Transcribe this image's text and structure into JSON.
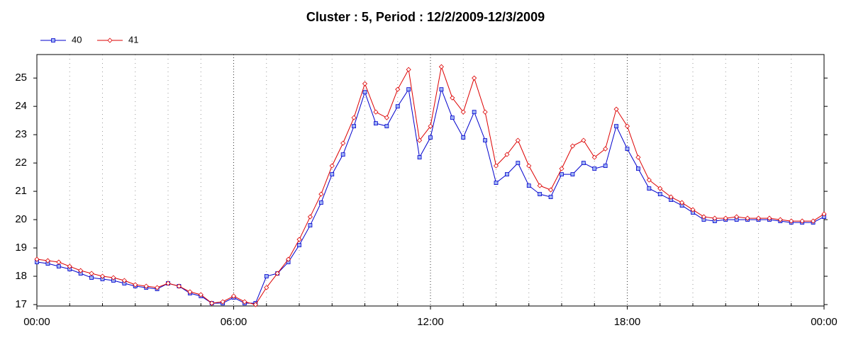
{
  "chart_data": {
    "type": "line",
    "title": "Cluster : 5, Period : 12/2/2009-12/3/2009",
    "x": [
      0,
      20,
      40,
      60,
      80,
      100,
      120,
      140,
      160,
      180,
      200,
      220,
      240,
      260,
      280,
      300,
      320,
      340,
      360,
      380,
      400,
      420,
      440,
      460,
      480,
      500,
      520,
      540,
      560,
      580,
      600,
      620,
      640,
      660,
      680,
      700,
      720,
      740,
      760,
      780,
      800,
      820,
      840,
      860,
      880,
      900,
      920,
      940,
      960,
      980,
      1000,
      1020,
      1040,
      1060,
      1080,
      1100,
      1120,
      1140,
      1160,
      1180,
      1200,
      1220,
      1240,
      1260,
      1280,
      1300,
      1320,
      1340,
      1360,
      1380,
      1400,
      1420,
      1440
    ],
    "series": [
      {
        "name": "40",
        "color": "#0000cc",
        "marker": "square",
        "values": [
          18.5,
          18.45,
          18.35,
          18.25,
          18.1,
          17.95,
          17.9,
          17.85,
          17.75,
          17.65,
          17.6,
          17.55,
          17.75,
          17.65,
          17.4,
          17.3,
          17.05,
          17.05,
          17.25,
          17.05,
          17.05,
          18.0,
          18.1,
          18.5,
          19.1,
          19.8,
          20.6,
          21.6,
          22.3,
          23.3,
          24.5,
          23.4,
          23.3,
          24.0,
          24.6,
          22.2,
          22.9,
          24.6,
          23.6,
          22.9,
          23.8,
          22.8,
          21.3,
          21.6,
          22.0,
          21.2,
          20.9,
          20.8,
          21.6,
          21.6,
          22.0,
          21.8,
          21.9,
          23.3,
          22.5,
          21.8,
          21.1,
          20.9,
          20.7,
          20.5,
          20.25,
          20.0,
          19.95,
          20.0,
          20.0,
          20.0,
          20.0,
          20.0,
          19.95,
          19.9,
          19.9,
          19.9,
          20.1
        ]
      },
      {
        "name": "41",
        "color": "#dd0000",
        "marker": "diamond",
        "values": [
          18.6,
          18.55,
          18.5,
          18.35,
          18.2,
          18.1,
          18.0,
          17.95,
          17.85,
          17.7,
          17.65,
          17.6,
          17.75,
          17.65,
          17.45,
          17.35,
          17.05,
          17.1,
          17.3,
          17.1,
          17.0,
          17.6,
          18.1,
          18.6,
          19.3,
          20.1,
          20.9,
          21.9,
          22.7,
          23.6,
          24.8,
          23.8,
          23.6,
          24.6,
          25.3,
          22.8,
          23.3,
          25.4,
          24.3,
          23.8,
          25.0,
          23.8,
          21.9,
          22.3,
          22.8,
          21.9,
          21.2,
          21.05,
          21.8,
          22.6,
          22.8,
          22.2,
          22.5,
          23.9,
          23.3,
          22.2,
          21.4,
          21.1,
          20.8,
          20.6,
          20.35,
          20.1,
          20.05,
          20.05,
          20.1,
          20.05,
          20.05,
          20.05,
          20.0,
          19.95,
          19.95,
          19.95,
          20.2
        ]
      }
    ],
    "xlim": [
      0,
      1440
    ],
    "xticks": [
      {
        "value": 0,
        "label": "00:00"
      },
      {
        "value": 360,
        "label": "06:00"
      },
      {
        "value": 720,
        "label": "12:00"
      },
      {
        "value": 1080,
        "label": "18:00"
      },
      {
        "value": 1440,
        "label": "00:00"
      }
    ],
    "xminorticks": [
      60,
      120,
      180,
      240,
      300,
      420,
      480,
      540,
      600,
      660,
      780,
      840,
      900,
      960,
      1020,
      1140,
      1200,
      1260,
      1320,
      1380
    ],
    "ylim": [
      16.95,
      25.83
    ],
    "yticks": [
      17,
      18,
      19,
      20,
      21,
      22,
      23,
      24,
      25
    ],
    "grid": true,
    "legend": "top-left"
  }
}
